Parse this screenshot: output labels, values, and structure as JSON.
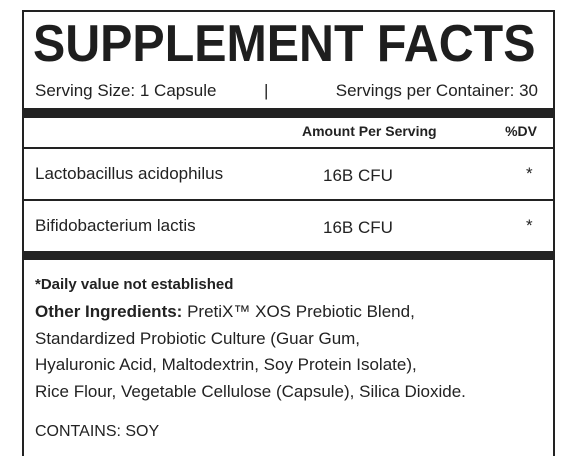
{
  "header": {
    "title": "SUPPLEMENT FACTS",
    "serving_size": "Serving Size: 1 Capsule",
    "separator": "|",
    "servings_per_container": "Servings per Container: 30"
  },
  "table": {
    "columns": [
      "Amount Per Serving",
      "%DV"
    ],
    "rows": [
      [
        "Lactobacillus acidophilus",
        "16B CFU",
        "*"
      ],
      [
        "Bifidobacterium lactis",
        "16B CFU",
        "*"
      ]
    ]
  },
  "footer": {
    "footnote": "*Daily value not established",
    "other_ingredients_label": "Other Ingredients:",
    "other_ingredients_lines": [
      "PretiX™ XOS Prebiotic Blend,",
      "Standardized Probiotic Culture (Guar Gum,",
      "Hyaluronic Acid, Maltodextrin, Soy Protein Isolate),",
      "Rice Flour, Vegetable Cellulose (Capsule), Silica Dioxide."
    ],
    "contains": "CONTAINS: SOY"
  }
}
